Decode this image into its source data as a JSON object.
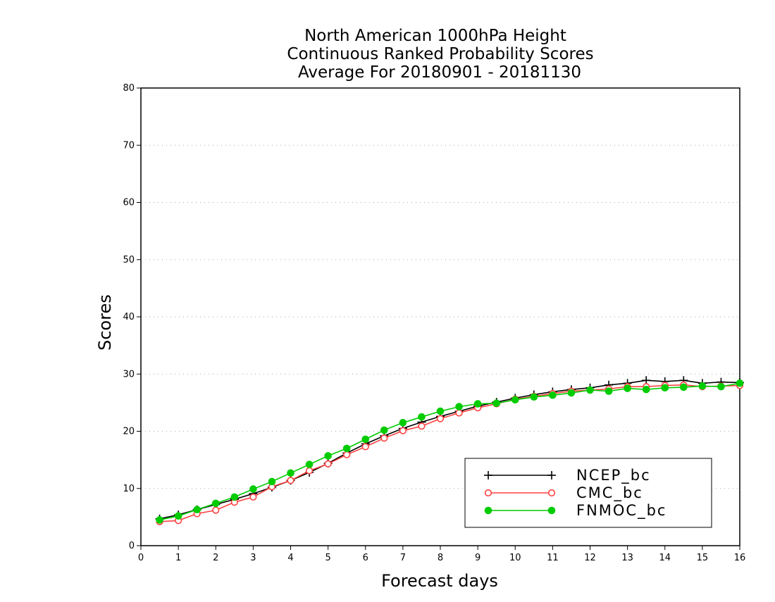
{
  "chart_data": {
    "type": "line",
    "title": [
      "North American 1000hPa Height",
      "Continuous Ranked Probability Scores",
      "Average For 20180901 - 20181130"
    ],
    "xlabel": "Forecast days",
    "ylabel": "Scores",
    "xlim": [
      0,
      16
    ],
    "ylim": [
      0,
      80
    ],
    "xticks": [
      "0",
      "1",
      "2",
      "3",
      "4",
      "5",
      "6",
      "7",
      "8",
      "9",
      "10",
      "11",
      "12",
      "13",
      "14",
      "15",
      "16"
    ],
    "yticks": [
      "0",
      "10",
      "20",
      "30",
      "40",
      "50",
      "60",
      "70",
      "80"
    ],
    "grid": "horizontal-dotted",
    "legend_position": "bottom-right",
    "x": [
      0.5,
      1,
      1.5,
      2,
      2.5,
      3,
      3.5,
      4,
      4.5,
      5,
      5.5,
      6,
      6.5,
      7,
      7.5,
      8,
      8.5,
      9,
      9.5,
      10,
      10.5,
      11,
      11.5,
      12,
      12.5,
      13,
      13.5,
      14,
      14.5,
      15,
      15.5,
      16
    ],
    "series": [
      {
        "name": "NCEP_bc",
        "color": "#000000",
        "marker": "plus",
        "values": [
          4.7,
          5.4,
          6.3,
          7.2,
          8.1,
          9.1,
          10.2,
          11.4,
          12.8,
          14.4,
          16.2,
          17.8,
          19.2,
          20.5,
          21.6,
          22.6,
          23.5,
          24.4,
          25.1,
          25.8,
          26.4,
          26.9,
          27.3,
          27.6,
          28.1,
          28.4,
          28.9,
          28.7,
          28.9,
          28.4,
          28.6,
          28.5
        ]
      },
      {
        "name": "CMC_bc",
        "color": "#ff4040",
        "marker": "open-circle",
        "values": [
          4.2,
          4.4,
          5.6,
          6.2,
          7.6,
          8.5,
          10.3,
          11.4,
          13.1,
          14.3,
          15.9,
          17.3,
          18.8,
          20.1,
          20.9,
          22.2,
          23.2,
          24.1,
          24.8,
          25.6,
          26.1,
          26.6,
          27.0,
          27.2,
          27.4,
          27.8,
          27.8,
          28.0,
          28.1,
          27.8,
          27.9,
          28.0
        ]
      },
      {
        "name": "FNMOC_bc",
        "color": "#00cc00",
        "marker": "filled-circle",
        "values": [
          4.5,
          5.2,
          6.3,
          7.4,
          8.5,
          9.9,
          11.2,
          12.7,
          14.2,
          15.7,
          17.0,
          18.6,
          20.2,
          21.5,
          22.5,
          23.5,
          24.3,
          24.8,
          24.9,
          25.5,
          26.0,
          26.3,
          26.7,
          27.2,
          27.0,
          27.5,
          27.3,
          27.6,
          27.7,
          27.9,
          27.8,
          28.4
        ]
      }
    ]
  }
}
